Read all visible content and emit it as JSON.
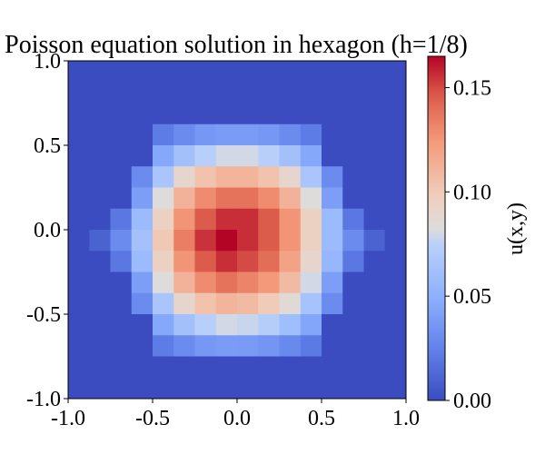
{
  "chart_data": {
    "type": "heatmap",
    "title": "Poisson equation solution in hexagon (h=1/8)",
    "colorbar_label": "u(x,y)",
    "colormap": "coolwarm",
    "xlim": [
      -1.0,
      1.0
    ],
    "ylim": [
      -1.0,
      1.0
    ],
    "x_ticks": [
      -1.0,
      -0.5,
      0.0,
      0.5,
      1.0
    ],
    "x_tick_labels": [
      "-1.0",
      "-0.5",
      "0.0",
      "0.5",
      "1.0"
    ],
    "y_ticks": [
      -1.0,
      -0.5,
      0.0,
      0.5,
      1.0
    ],
    "y_tick_labels": [
      "-1.0",
      "-0.5",
      "0.0",
      "0.5",
      "1.0"
    ],
    "colorbar_range": [
      0.0,
      0.165
    ],
    "colorbar_ticks": [
      0.0,
      0.05,
      0.1,
      0.15
    ],
    "colorbar_tick_labels": [
      "0.00",
      "0.05",
      "0.10",
      "0.15"
    ],
    "grid": {
      "h": 0.125,
      "rows": 16,
      "cols": 16,
      "y_order": "top-to-bottom",
      "values": [
        [
          0,
          0,
          0,
          0,
          0,
          0,
          0,
          0,
          0,
          0,
          0,
          0,
          0,
          0,
          0,
          0
        ],
        [
          0,
          0,
          0,
          0,
          0,
          0,
          0,
          0,
          0,
          0,
          0,
          0,
          0,
          0,
          0,
          0
        ],
        [
          0,
          0,
          0,
          0,
          0,
          0,
          0,
          0,
          0,
          0,
          0,
          0,
          0,
          0,
          0,
          0
        ],
        [
          0,
          0,
          0,
          0,
          0.022,
          0.03,
          0.036,
          0.039,
          0.039,
          0.036,
          0.03,
          0.022,
          0,
          0,
          0,
          0
        ],
        [
          0,
          0,
          0,
          0,
          0.045,
          0.062,
          0.074,
          0.08,
          0.08,
          0.074,
          0.062,
          0.045,
          0,
          0,
          0,
          0
        ],
        [
          0,
          0,
          0,
          0.03,
          0.066,
          0.09,
          0.104,
          0.111,
          0.111,
          0.104,
          0.09,
          0.066,
          0.03,
          0,
          0,
          0
        ],
        [
          0,
          0,
          0,
          0.04,
          0.083,
          0.112,
          0.129,
          0.138,
          0.138,
          0.129,
          0.112,
          0.083,
          0.04,
          0,
          0,
          0
        ],
        [
          0,
          0,
          0.02,
          0.058,
          0.095,
          0.126,
          0.146,
          0.156,
          0.156,
          0.146,
          0.126,
          0.095,
          0.058,
          0.02,
          0,
          0
        ],
        [
          0,
          0.01,
          0.03,
          0.063,
          0.101,
          0.134,
          0.155,
          0.165,
          0.156,
          0.146,
          0.126,
          0.095,
          0.058,
          0.03,
          0.01,
          0
        ],
        [
          0,
          0,
          0.02,
          0.058,
          0.095,
          0.126,
          0.146,
          0.156,
          0.15,
          0.14,
          0.12,
          0.09,
          0.055,
          0.02,
          0,
          0
        ],
        [
          0,
          0,
          0,
          0.04,
          0.083,
          0.112,
          0.129,
          0.138,
          0.132,
          0.124,
          0.108,
          0.08,
          0.04,
          0,
          0,
          0
        ],
        [
          0,
          0,
          0,
          0.03,
          0.066,
          0.09,
          0.104,
          0.111,
          0.108,
          0.1,
          0.086,
          0.064,
          0.03,
          0,
          0,
          0
        ],
        [
          0,
          0,
          0,
          0,
          0.045,
          0.062,
          0.074,
          0.08,
          0.078,
          0.072,
          0.06,
          0.044,
          0,
          0,
          0,
          0
        ],
        [
          0,
          0,
          0,
          0,
          0.022,
          0.03,
          0.036,
          0.039,
          0.038,
          0.035,
          0.029,
          0.021,
          0,
          0,
          0,
          0
        ],
        [
          0,
          0,
          0,
          0,
          0,
          0,
          0,
          0,
          0,
          0,
          0,
          0,
          0,
          0,
          0,
          0
        ],
        [
          0,
          0,
          0,
          0,
          0,
          0,
          0,
          0,
          0,
          0,
          0,
          0,
          0,
          0,
          0,
          0
        ]
      ]
    }
  }
}
